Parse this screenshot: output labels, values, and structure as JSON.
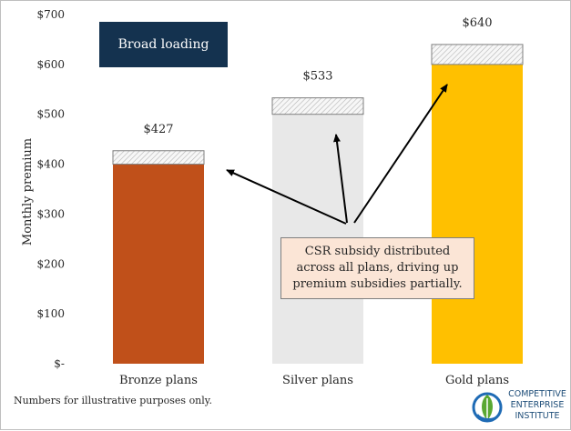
{
  "chart_data": {
    "type": "bar",
    "stacked": true,
    "categories": [
      "Bronze plans",
      "Silver plans",
      "Gold plans"
    ],
    "series": [
      {
        "values": [
          400,
          500,
          600
        ]
      },
      {
        "values": [
          27,
          33,
          40
        ]
      }
    ],
    "totals": [
      427,
      533,
      640
    ],
    "total_labels": [
      "$427",
      "$533",
      "$640"
    ],
    "bar_colors": [
      "#c0501a",
      "#e8e8e8",
      "#ffc000"
    ],
    "loading_color": "#f2f2f2",
    "ylabel": "Monthly premium",
    "ylim": [
      0,
      700
    ],
    "yticks": [
      0,
      100,
      200,
      300,
      400,
      500,
      600,
      700
    ],
    "ytick_labels": [
      "$-",
      "$100",
      "$200",
      "$300",
      "$400",
      "$500",
      "$600",
      "$700"
    ],
    "grid": false,
    "legend": "none"
  },
  "annotations": {
    "label_box": "Broad loading",
    "note": "CSR subsidy distributed across all plans, driving up premium subsidies partially.",
    "label_box_color": "#14324f",
    "note_color": "#fbe5d6"
  },
  "footnote": "Numbers for illustrative purposes only.",
  "logo": {
    "text": "COMPETITIVE ENTERPRISE INSTITUTE",
    "line1": "COMPETITIVE",
    "line2": "ENTERPRISE",
    "line3": "INSTITUTE",
    "icon": "cei-leaf-globe-icon"
  }
}
